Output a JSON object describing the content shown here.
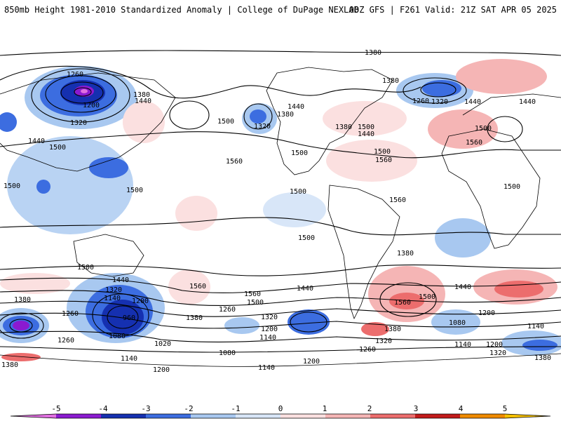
{
  "header": {
    "left": "850mb Height 1981-2010 Standardized Anomaly | College of DuPage NEXLAB",
    "right": "00Z GFS | F261 Valid: 21Z SAT APR 05 2025"
  },
  "contour_labels": [
    "1380",
    "1260",
    "1380",
    "1440",
    "1200",
    "1320",
    "1380",
    "1440",
    "1320",
    "1380",
    "1260",
    "1320",
    "1440",
    "1440",
    "1500",
    "1500",
    "1440",
    "1500",
    "1500",
    "1560",
    "1500",
    "1380",
    "1500",
    "1440",
    "1500",
    "1560",
    "1500",
    "1560",
    "1500",
    "1500",
    "1560",
    "1500",
    "1500",
    "1440",
    "1380",
    "1320",
    "1140",
    "1200",
    "1260",
    "960",
    "1380",
    "1260",
    "1320",
    "1200",
    "1140",
    "1080",
    "1020",
    "1140",
    "1080",
    "1140",
    "1200",
    "1200",
    "1560",
    "1500",
    "1440",
    "1560",
    "1500",
    "1380",
    "1320",
    "1260",
    "1560",
    "1440",
    "1200",
    "1080",
    "1140",
    "1200",
    "1140",
    "1320",
    "1380",
    "1380",
    "1380",
    "1260"
  ],
  "colorbar": {
    "ticks": [
      "-5",
      "-4",
      "-3",
      "-2",
      "-1",
      "0",
      "1",
      "2",
      "3",
      "4",
      "5"
    ],
    "colors": {
      "minus5": "#e070e0",
      "minus4": "#8b1ad0",
      "minus3": "#1530b0",
      "minus2": "#3c6de0",
      "minus1": "#a8c8f0",
      "minus0": "#d8e6f8",
      "plus0": "#fbe0e0",
      "plus1": "#f5b5b5",
      "plus2": "#ec6d6d",
      "plus3": "#c21a1a",
      "plus4": "#ef8a00",
      "plus5": "#f5c000"
    }
  }
}
